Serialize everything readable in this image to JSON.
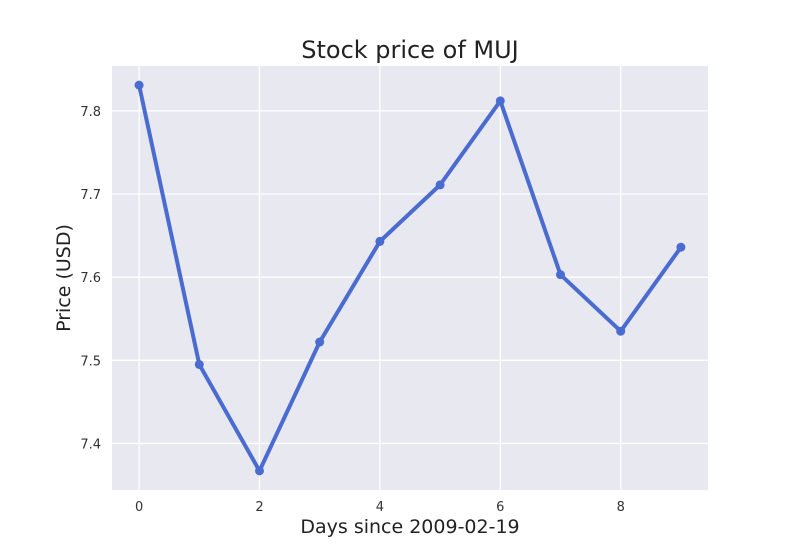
{
  "chart_data": {
    "type": "line",
    "title": "Stock price of MUJ",
    "xlabel": "Days since 2009-02-19",
    "ylabel": "Price (USD)",
    "x": [
      0,
      1,
      2,
      3,
      4,
      5,
      6,
      7,
      8,
      9
    ],
    "series": [
      {
        "values": [
          7.831,
          7.495,
          7.367,
          7.522,
          7.643,
          7.711,
          7.812,
          7.603,
          7.535,
          7.636
        ]
      }
    ],
    "xlim": [
      -0.45,
      9.45
    ],
    "ylim": [
      7.344,
      7.854
    ],
    "xticks": [
      0,
      2,
      4,
      6,
      8
    ],
    "yticks": [
      7.4,
      7.5,
      7.6,
      7.7,
      7.8
    ],
    "grid": true,
    "line_color": "#4a6bcf",
    "background_color": "#e8e8f0",
    "grid_color": "#ffffff"
  }
}
